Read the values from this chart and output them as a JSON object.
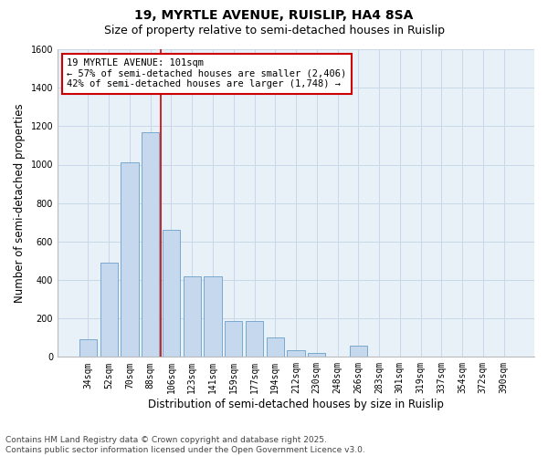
{
  "title_line1": "19, MYRTLE AVENUE, RUISLIP, HA4 8SA",
  "title_line2": "Size of property relative to semi-detached houses in Ruislip",
  "xlabel": "Distribution of semi-detached houses by size in Ruislip",
  "ylabel": "Number of semi-detached properties",
  "categories": [
    "34sqm",
    "52sqm",
    "70sqm",
    "88sqm",
    "106sqm",
    "123sqm",
    "141sqm",
    "159sqm",
    "177sqm",
    "194sqm",
    "212sqm",
    "230sqm",
    "248sqm",
    "266sqm",
    "283sqm",
    "301sqm",
    "319sqm",
    "337sqm",
    "354sqm",
    "372sqm",
    "390sqm"
  ],
  "values": [
    90,
    490,
    1010,
    1170,
    660,
    420,
    420,
    185,
    185,
    100,
    35,
    20,
    0,
    60,
    0,
    0,
    0,
    0,
    0,
    0,
    0
  ],
  "bar_color": "#c5d8ee",
  "bar_edge_color": "#6b9fc8",
  "bar_width": 0.85,
  "vline_x_index": 3,
  "vline_color": "#cc0000",
  "annotation_text": "19 MYRTLE AVENUE: 101sqm\n← 57% of semi-detached houses are smaller (2,406)\n42% of semi-detached houses are larger (1,748) →",
  "annotation_box_color": "#ffffff",
  "annotation_box_edge_color": "#cc0000",
  "ylim": [
    0,
    1600
  ],
  "yticks": [
    0,
    200,
    400,
    600,
    800,
    1000,
    1200,
    1400,
    1600
  ],
  "grid_color": "#c8d8e8",
  "background_color": "#e8f0f8",
  "footer_text": "Contains HM Land Registry data © Crown copyright and database right 2025.\nContains public sector information licensed under the Open Government Licence v3.0.",
  "title_fontsize": 10,
  "subtitle_fontsize": 9,
  "tick_fontsize": 7,
  "label_fontsize": 8.5,
  "annotation_fontsize": 7.5,
  "footer_fontsize": 6.5
}
